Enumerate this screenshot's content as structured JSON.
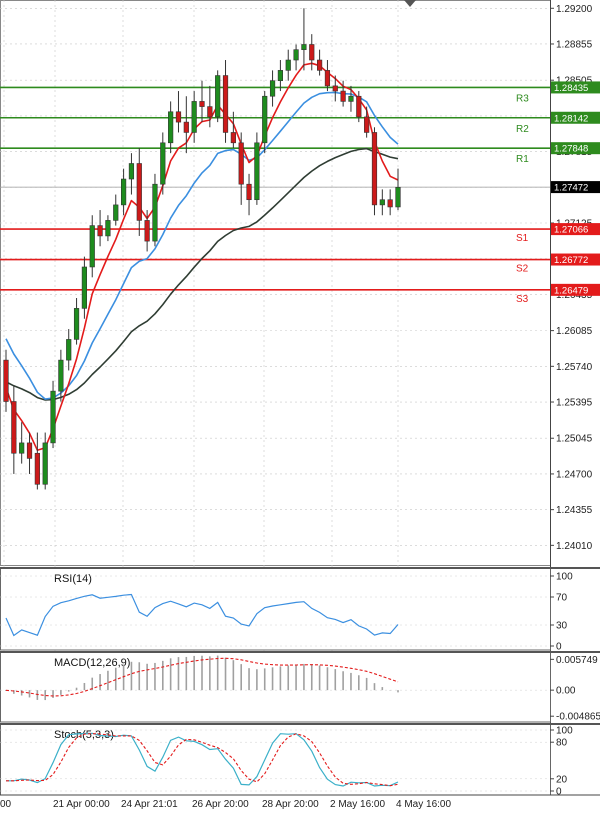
{
  "chart_data": {
    "type": "candlestick",
    "symbol_hint": "GBPUSD H4",
    "price_axis": {
      "ticks": [
        "1.29200",
        "1.28855",
        "1.28505",
        "1.28160",
        "1.27815",
        "1.27470",
        "1.27125",
        "1.26780",
        "1.26435",
        "1.26085",
        "1.25740",
        "1.25395",
        "1.25045",
        "1.24700",
        "1.24355",
        "1.24010"
      ],
      "range": [
        1.2382,
        1.2928
      ]
    },
    "time_axis": {
      "labels": [
        "00",
        "21 Apr 00:00",
        "24 Apr 21:01",
        "26 Apr 20:00",
        "28 Apr 20:00",
        "2 May 16:00",
        "4 May 16:00"
      ]
    },
    "current_price": {
      "label": "1.27472",
      "value": 1.27472,
      "color": "#000000"
    },
    "levels": [
      {
        "name": "R3",
        "label": "1.28435",
        "value": 1.28435,
        "color": "#2e8b1e"
      },
      {
        "name": "R2",
        "label": "1.28142",
        "value": 1.28142,
        "color": "#2e8b1e"
      },
      {
        "name": "R1",
        "label": "1.27848",
        "value": 1.27848,
        "color": "#2e8b1e"
      },
      {
        "name": "S1",
        "label": "1.27066",
        "value": 1.27066,
        "color": "#e31b1b"
      },
      {
        "name": "S2",
        "label": "1.26772",
        "value": 1.26772,
        "color": "#e31b1b"
      },
      {
        "name": "S3",
        "label": "1.26479",
        "value": 1.26479,
        "color": "#e31b1b"
      }
    ],
    "candles": [
      [
        1.258,
        1.259,
        1.253,
        1.254
      ],
      [
        1.254,
        1.2555,
        1.247,
        1.249
      ],
      [
        1.249,
        1.252,
        1.248,
        1.25
      ],
      [
        1.25,
        1.251,
        1.247,
        1.2485
      ],
      [
        1.249,
        1.251,
        1.2455,
        1.246
      ],
      [
        1.246,
        1.251,
        1.2455,
        1.25
      ],
      [
        1.25,
        1.256,
        1.2495,
        1.255
      ],
      [
        1.255,
        1.259,
        1.254,
        1.258
      ],
      [
        1.258,
        1.261,
        1.257,
        1.26
      ],
      [
        1.26,
        1.264,
        1.2595,
        1.263
      ],
      [
        1.263,
        1.268,
        1.262,
        1.267
      ],
      [
        1.267,
        1.272,
        1.266,
        1.271
      ],
      [
        1.271,
        1.2725,
        1.269,
        1.27
      ],
      [
        1.27,
        1.272,
        1.2695,
        1.2715
      ],
      [
        1.2715,
        1.274,
        1.271,
        1.273
      ],
      [
        1.273,
        1.2765,
        1.272,
        1.2755
      ],
      [
        1.2755,
        1.278,
        1.274,
        1.277
      ],
      [
        1.277,
        1.2785,
        1.27,
        1.2715
      ],
      [
        1.2715,
        1.2725,
        1.2685,
        1.2695
      ],
      [
        1.2695,
        1.276,
        1.269,
        1.275
      ],
      [
        1.275,
        1.28,
        1.274,
        1.279
      ],
      [
        1.279,
        1.283,
        1.278,
        1.282
      ],
      [
        1.282,
        1.284,
        1.28,
        1.281
      ],
      [
        1.281,
        1.2835,
        1.278,
        1.28
      ],
      [
        1.28,
        1.284,
        1.279,
        1.283
      ],
      [
        1.283,
        1.285,
        1.281,
        1.2825
      ],
      [
        1.2825,
        1.2845,
        1.2805,
        1.2815
      ],
      [
        1.2815,
        1.286,
        1.281,
        1.2855
      ],
      [
        1.2855,
        1.287,
        1.279,
        1.28
      ],
      [
        1.28,
        1.282,
        1.2785,
        1.279
      ],
      [
        1.279,
        1.28,
        1.273,
        1.275
      ],
      [
        1.275,
        1.276,
        1.272,
        1.2735
      ],
      [
        1.2735,
        1.28,
        1.273,
        1.279
      ],
      [
        1.279,
        1.284,
        1.278,
        1.2835
      ],
      [
        1.2835,
        1.286,
        1.2825,
        1.285
      ],
      [
        1.285,
        1.287,
        1.284,
        1.286
      ],
      [
        1.286,
        1.288,
        1.285,
        1.287
      ],
      [
        1.287,
        1.2885,
        1.286,
        1.288
      ],
      [
        1.288,
        1.292,
        1.286,
        1.2885
      ],
      [
        1.2885,
        1.2895,
        1.286,
        1.287
      ],
      [
        1.287,
        1.288,
        1.2855,
        1.286
      ],
      [
        1.286,
        1.287,
        1.284,
        1.2845
      ],
      [
        1.2845,
        1.2855,
        1.283,
        1.284
      ],
      [
        1.284,
        1.285,
        1.2825,
        1.283
      ],
      [
        1.283,
        1.2845,
        1.282,
        1.2835
      ],
      [
        1.2835,
        1.284,
        1.281,
        1.2815
      ],
      [
        1.2815,
        1.2825,
        1.2795,
        1.28
      ],
      [
        1.28,
        1.2805,
        1.272,
        1.273
      ],
      [
        1.273,
        1.2745,
        1.272,
        1.2735
      ],
      [
        1.2735,
        1.2745,
        1.272,
        1.2728
      ],
      [
        1.2728,
        1.2765,
        1.2725,
        1.2747
      ]
    ],
    "indicators": [
      {
        "name": "RSI(14)",
        "axis_ticks": [
          "100",
          "70",
          "30",
          "0"
        ],
        "range": [
          0,
          100
        ]
      },
      {
        "name": "MACD(12,26,9)",
        "axis_ticks": [
          "0.005749",
          "0.00",
          "-0.004865"
        ],
        "range": [
          -0.0052,
          0.006
        ]
      },
      {
        "name": "Stoch(5,3,3)",
        "axis_ticks": [
          "100",
          "80",
          "20",
          "0"
        ],
        "range": [
          0,
          100
        ]
      }
    ],
    "colors": {
      "bull": "#1e8c1e",
      "bear": "#cc1a1a",
      "ma_fast": "#e31b1b",
      "ma_mid": "#3b8fe0",
      "ma_slow": "#2f3d33",
      "rsi": "#3b8fe0",
      "macd_hist": "#a0a0a0",
      "macd_signal": "#e31b1b",
      "stoch_k": "#3bb0c9",
      "stoch_d": "#e31b1b"
    }
  }
}
